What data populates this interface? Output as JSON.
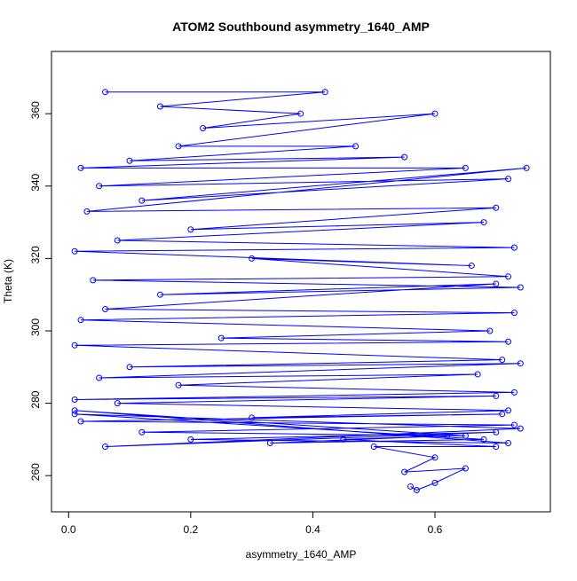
{
  "chart_data": {
    "type": "line",
    "title": "ATOM2 Southbound asymmetry_1640_AMP",
    "x_label": "asymmetry_1640_AMP",
    "y_label": "Theta (K)",
    "color": "#0000ff",
    "xlim": [
      -0.028,
      0.789
    ],
    "ylim": [
      250,
      377.2
    ],
    "xticks": [
      {
        "value": 0,
        "label": "0.0"
      },
      0.2,
      0.4,
      0.6
    ],
    "yticks": [
      260,
      280,
      300,
      320,
      340,
      360
    ],
    "series": [
      {
        "name": "Theta",
        "color": "#0000ff",
        "x": [
          0.06,
          0.42,
          0.15,
          0.38,
          0.22,
          0.6,
          0.18,
          0.47,
          0.1,
          0.55,
          0.02,
          0.65,
          0.05,
          0.72,
          0.12,
          0.75,
          0.03,
          0.7,
          0.2,
          0.68,
          0.08,
          0.73,
          0.01,
          0.66,
          0.3,
          0.72,
          0.04,
          0.74,
          0.15,
          0.7,
          0.06,
          0.73,
          0.02,
          0.69,
          0.25,
          0.72,
          0.01,
          0.71,
          0.1,
          0.74,
          0.05,
          0.67,
          0.18,
          0.73,
          0.01,
          0.7,
          0.08,
          0.72,
          0.3,
          0.71,
          0.02,
          0.73,
          0.12,
          0.65,
          0.01,
          0.72,
          0.2,
          0.7,
          0.06,
          0.74,
          0.01,
          0.68,
          0.33,
          0.62,
          0.45,
          0.7,
          0.5,
          0.6,
          0.55,
          0.65,
          0.6,
          0.57,
          0.56
        ],
        "values": [
          366,
          366,
          362,
          360,
          356,
          360,
          351,
          351,
          347,
          348,
          345,
          345,
          340,
          342,
          336,
          345,
          333,
          334,
          328,
          330,
          325,
          323,
          322,
          318,
          320,
          315,
          314,
          312,
          310,
          313,
          306,
          305,
          303,
          300,
          298,
          297,
          296,
          292,
          290,
          291,
          287,
          288,
          285,
          283,
          281,
          282,
          280,
          278,
          276,
          277,
          275,
          274,
          272,
          271,
          278,
          269,
          270,
          272,
          268,
          273,
          277,
          270,
          269,
          271,
          270,
          268,
          268,
          265,
          261,
          262,
          258,
          256,
          257
        ]
      }
    ]
  }
}
